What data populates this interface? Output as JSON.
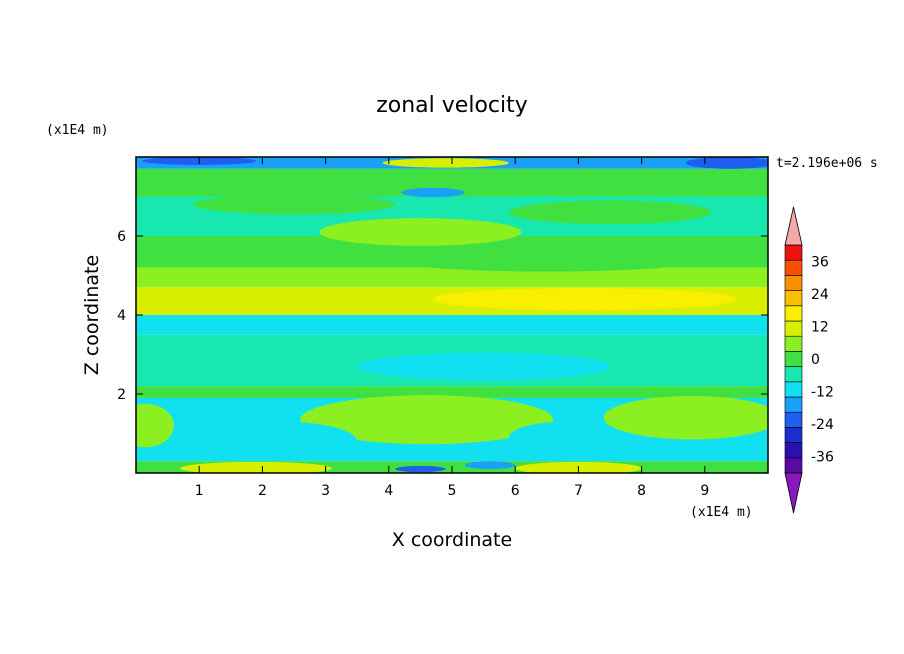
{
  "chart_data": {
    "type": "heatmap",
    "title": "zonal velocity",
    "xlabel": "X coordinate",
    "ylabel": "Z coordinate",
    "x_unit": "(x1E4 m)",
    "z_unit": "(x1E4 m)",
    "time_label": "t=2.196e+06 s",
    "xlim": [
      0,
      10
    ],
    "ylim": [
      0,
      8
    ],
    "x_ticks": [
      "1",
      "2",
      "3",
      "4",
      "5",
      "6",
      "7",
      "8",
      "9"
    ],
    "y_ticks": [
      "2",
      "4",
      "6"
    ],
    "colorbar": {
      "levels": [
        -42,
        -36,
        -30,
        -24,
        -18,
        -12,
        -6,
        0,
        6,
        12,
        18,
        24,
        30,
        36,
        42
      ],
      "labels": [
        "-36",
        "-24",
        "-12",
        "0",
        "12",
        "24",
        "36"
      ],
      "colors": [
        "#5a0aa0",
        "#2a10b0",
        "#1a2fd0",
        "#1e5ff0",
        "#1aa0f8",
        "#10e0f0",
        "#18e8b0",
        "#40e040",
        "#8cf020",
        "#d8f000",
        "#f8f000",
        "#f8c000",
        "#f89000",
        "#f85000",
        "#f01010"
      ],
      "under_color": "#8a18c0",
      "over_color": "#f4a8a8"
    },
    "bands": [
      {
        "z0": 7.7,
        "z1": 8.0,
        "value": -14
      },
      {
        "z0": 7.0,
        "z1": 7.7,
        "value": 2
      },
      {
        "z0": 6.0,
        "z1": 7.0,
        "value": -2
      },
      {
        "z0": 5.2,
        "z1": 6.0,
        "value": 3
      },
      {
        "z0": 4.7,
        "z1": 5.2,
        "value": 8
      },
      {
        "z0": 4.0,
        "z1": 4.7,
        "value": 13
      },
      {
        "z0": 3.5,
        "z1": 4.0,
        "value": -7
      },
      {
        "z0": 2.2,
        "z1": 3.5,
        "value": -6
      },
      {
        "z0": 1.9,
        "z1": 2.2,
        "value": 2
      },
      {
        "z0": 0.3,
        "z1": 1.9,
        "value": -8
      },
      {
        "z0": 0.0,
        "z1": 0.3,
        "value": 4
      }
    ],
    "blobs": [
      {
        "x": 4.6,
        "z": 1.35,
        "rx": 1.4,
        "rz": 0.45,
        "value": 12
      },
      {
        "x": 4.6,
        "z": 1.35,
        "rx": 2.0,
        "rz": 0.62,
        "value": 7
      },
      {
        "x": 8.9,
        "z": 1.45,
        "rx": 0.9,
        "rz": 0.38,
        "value": 12
      },
      {
        "x": 8.8,
        "z": 1.4,
        "rx": 1.4,
        "rz": 0.55,
        "value": 7
      },
      {
        "x": 0.15,
        "z": 1.2,
        "rx": 0.45,
        "rz": 0.55,
        "value": 8
      },
      {
        "x": 1.9,
        "z": 0.12,
        "rx": 1.2,
        "rz": 0.16,
        "value": 12
      },
      {
        "x": 7.0,
        "z": 0.12,
        "rx": 1.0,
        "rz": 0.16,
        "value": 12
      },
      {
        "x": 7.1,
        "z": 4.4,
        "rx": 2.4,
        "rz": 0.28,
        "value": 18
      },
      {
        "x": 2.6,
        "z": 4.4,
        "rx": 1.8,
        "rz": 0.25,
        "value": 16
      },
      {
        "x": 4.5,
        "z": 6.1,
        "rx": 1.6,
        "rz": 0.35,
        "value": 6
      },
      {
        "x": 7.5,
        "z": 6.6,
        "rx": 1.6,
        "rz": 0.3,
        "value": 5
      },
      {
        "x": 4.9,
        "z": 7.85,
        "rx": 1.0,
        "rz": 0.12,
        "value": 12
      },
      {
        "x": 9.4,
        "z": 7.85,
        "rx": 0.7,
        "rz": 0.15,
        "value": -22
      },
      {
        "x": 1.0,
        "z": 7.9,
        "rx": 0.9,
        "rz": 0.1,
        "value": -20
      },
      {
        "x": 4.7,
        "z": 7.1,
        "rx": 0.5,
        "rz": 0.12,
        "value": -18
      },
      {
        "x": 5.6,
        "z": 0.2,
        "rx": 0.4,
        "rz": 0.1,
        "value": -18
      },
      {
        "x": 4.5,
        "z": 0.1,
        "rx": 0.4,
        "rz": 0.08,
        "value": -20
      },
      {
        "x": 2.3,
        "z": 0.8,
        "rx": 1.2,
        "rz": 0.5,
        "value": -10
      },
      {
        "x": 6.8,
        "z": 0.9,
        "rx": 0.9,
        "rz": 0.4,
        "value": -11
      },
      {
        "x": 5.5,
        "z": 2.7,
        "rx": 2.0,
        "rz": 0.35,
        "value": -10
      },
      {
        "x": 2.5,
        "z": 6.8,
        "rx": 1.6,
        "rz": 0.25,
        "value": 3
      },
      {
        "x": 6.5,
        "z": 5.4,
        "rx": 2.5,
        "rz": 0.3,
        "value": 4
      }
    ]
  }
}
